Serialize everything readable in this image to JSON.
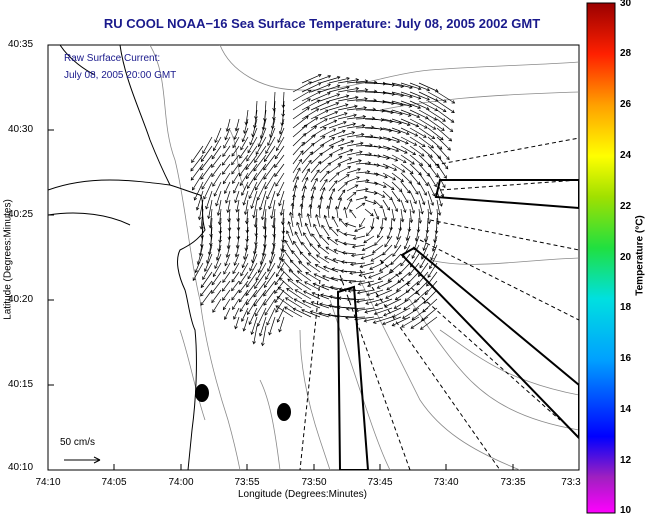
{
  "title": "RU COOL  NOAA−16  Sea Surface Temperature:  July 08, 2005 2002 GMT",
  "legend": {
    "line1": "Raw Surface Current:",
    "line2": "July 08, 2005 20:00 GMT",
    "scale_label": "50 cm/s"
  },
  "axes": {
    "xlabel": "Longitude (Degrees:Minutes)",
    "ylabel": "Latitude (Degrees:Minutes)",
    "x_ticks": [
      "74:10",
      "74:05",
      "74:00",
      "73:55",
      "73:50",
      "73:45",
      "73:40",
      "73:35",
      "73:3"
    ],
    "y_ticks": [
      "40:35",
      "40:30",
      "40:25",
      "40:20",
      "40:15",
      "40:10"
    ]
  },
  "colorbar": {
    "title": "Temperature (°C)",
    "ticks": [
      "30",
      "28",
      "26",
      "24",
      "22",
      "20",
      "18",
      "16",
      "14",
      "12",
      "10"
    ],
    "range": [
      10,
      30
    ]
  },
  "colors": {
    "title": "#1a1a8c",
    "coast": "#000000",
    "bathymetry": "#8a8a8a"
  }
}
